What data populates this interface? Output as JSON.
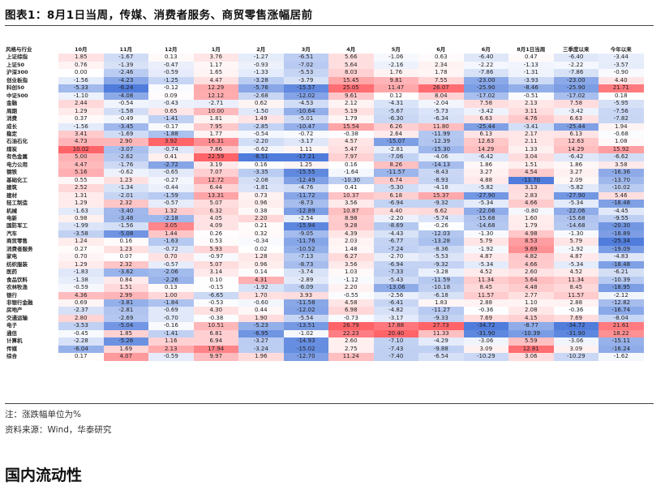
{
  "title": "图表1：8月1日当周，传媒、消费者服务、商贸零售涨幅居前",
  "table": {
    "headers": [
      "风格与行业",
      "10月",
      "11月",
      "12月",
      "1月",
      "2月",
      "3月",
      "4月",
      "5月",
      "6月",
      "6月",
      "8月1日当周",
      "三季度以来",
      "今年以来"
    ],
    "rows": [
      {
        "label": "上证综指",
        "values": [
          "1.85",
          "-1.67",
          "0.13",
          "3.76",
          "-1.27",
          "-6.51",
          "5.66",
          "-1.06",
          "0.63",
          "-6.40",
          "0.47",
          "-6.40",
          "-3.44"
        ]
      },
      {
        "label": "上证50",
        "values": [
          "0.76",
          "-1.39",
          "-0.47",
          "1.17",
          "-0.93",
          "-7.02",
          "5.64",
          "-2.16",
          "2.34",
          "-2.22",
          "-1.13",
          "-2.22",
          "-3.57"
        ]
      },
      {
        "label": "沪深300",
        "values": [
          "0.00",
          "-2.46",
          "-0.59",
          "1.65",
          "-1.33",
          "-5.53",
          "8.03",
          "1.76",
          "1.78",
          "-7.86",
          "-1.31",
          "-7.86",
          "-0.90"
        ]
      },
      {
        "label": "创业板指",
        "values": [
          "-1.56",
          "-4.23",
          "-1.25",
          "4.47",
          "-3.28",
          "-3.79",
          "15.45",
          "9.81",
          "7.55",
          "-23.00",
          "-3.93",
          "-23.00",
          "4.40"
        ]
      },
      {
        "label": "科创50",
        "values": [
          "-5.33",
          "-6.24",
          "-0.12",
          "12.29",
          "-5.76",
          "-15.57",
          "25.05",
          "11.47",
          "26.07",
          "-25.90",
          "-8.46",
          "-25.90",
          "21.71"
        ]
      },
      {
        "label": "中证500",
        "values": [
          "-1.10",
          "-4.08",
          "0.09",
          "12.12",
          "-2.68",
          "-12.02",
          "9.61",
          "0.12",
          "8.04",
          "-17.02",
          "-0.51",
          "-17.02",
          "0.18"
        ]
      },
      {
        "label": "金融",
        "values": [
          "2.44",
          "-0.54",
          "-0.43",
          "-2.71",
          "0.62",
          "-4.53",
          "2.12",
          "-4.31",
          "-2.04",
          "7.58",
          "2.13",
          "7.58",
          "-5.95"
        ]
      },
      {
        "label": "周期",
        "values": [
          "1.29",
          "-1.58",
          "0.65",
          "10.00",
          "-1.50",
          "-10.64",
          "5.19",
          "-5.67",
          "-5.73",
          "-3.42",
          "3.11",
          "-3.42",
          "-7.56"
        ]
      },
      {
        "label": "消费",
        "values": [
          "0.37",
          "-0.49",
          "-1.41",
          "1.81",
          "1.49",
          "-5.01",
          "1.79",
          "-6.30",
          "-6.34",
          "6.63",
          "4.76",
          "6.63",
          "-7.82"
        ]
      },
      {
        "label": "成长",
        "values": [
          "-1.56",
          "-3.45",
          "-0.17",
          "7.95",
          "-2.85",
          "-10.47",
          "15.54",
          "6.26",
          "11.80",
          "-25.44",
          "-3.41",
          "-25.44",
          "1.94"
        ]
      },
      {
        "label": "稳定",
        "values": [
          "3.41",
          "-1.69",
          "-1.88",
          "1.77",
          "-0.54",
          "-0.72",
          "-0.38",
          "2.64",
          "-11.99",
          "6.13",
          "2.17",
          "6.13",
          "-0.68"
        ]
      },
      {
        "label": "石油石化",
        "values": [
          "4.73",
          "2.90",
          "3.92",
          "16.31",
          "-2.20",
          "-3.17",
          "4.57",
          "-15.07",
          "-12.39",
          "12.63",
          "2.11",
          "12.63",
          "1.08"
        ]
      },
      {
        "label": "煤炭",
        "values": [
          "10.02",
          "-3.07",
          "-0.74",
          "7.86",
          "-0.62",
          "1.11",
          "5.47",
          "-2.81",
          "-15.30",
          "14.29",
          "1.33",
          "14.29",
          "15.92"
        ]
      },
      {
        "label": "有色金属",
        "values": [
          "5.00",
          "-2.62",
          "0.41",
          "22.59",
          "-8.51",
          "-17.21",
          "7.97",
          "-7.06",
          "-4.06",
          "-6.42",
          "3.04",
          "-6.42",
          "-6.62"
        ]
      },
      {
        "label": "电力公用",
        "values": [
          "4.47",
          "-1.76",
          "-2.72",
          "3.19",
          "0.16",
          "1.25",
          "0.16",
          "8.26",
          "-14.13",
          "1.86",
          "1.51",
          "1.86",
          "3.58"
        ]
      },
      {
        "label": "钢铁",
        "values": [
          "5.16",
          "-0.62",
          "-0.65",
          "7.07",
          "-3.35",
          "-15.55",
          "-1.64",
          "-11.57",
          "-8.43",
          "3.27",
          "4.54",
          "3.27",
          "-16.36"
        ]
      },
      {
        "label": "基础化工",
        "values": [
          "0.55",
          "1.23",
          "-0.27",
          "12.72",
          "-2.08",
          "-12.49",
          "-10.30",
          "6.74",
          "-8.93",
          "4.88",
          "-13.70",
          "2.09",
          "-13.70"
        ]
      },
      {
        "label": "建筑",
        "values": [
          "2.52",
          "-1.34",
          "-0.44",
          "6.44",
          "-1.81",
          "-4.76",
          "0.41",
          "-5.30",
          "-4.18",
          "-5.82",
          "3.13",
          "-5.82",
          "-10.02"
        ]
      },
      {
        "label": "建材",
        "values": [
          "1.31",
          "-2.01",
          "-1.59",
          "13.31",
          "0.73",
          "-11.72",
          "10.37",
          "6.18",
          "15.37",
          "-27.90",
          "2.83",
          "-27.90",
          "5.46"
        ]
      },
      {
        "label": "轻工制造",
        "values": [
          "1.29",
          "2.32",
          "-0.57",
          "5.07",
          "0.96",
          "-8.73",
          "3.56",
          "-6.94",
          "-9.32",
          "-5.34",
          "4.66",
          "-5.34",
          "-18.48"
        ]
      },
      {
        "label": "机械",
        "values": [
          "-1.63",
          "-3.40",
          "1.32",
          "6.32",
          "0.38",
          "-12.89",
          "10.87",
          "4.40",
          "6.62",
          "-22.06",
          "-0.80",
          "-22.06",
          "-4.45"
        ]
      },
      {
        "label": "电新",
        "values": [
          "0.98",
          "-3.48",
          "-2.18",
          "4.05",
          "2.20",
          "-2.54",
          "8.98",
          "-2.20",
          "-5.74",
          "-15.68",
          "1.60",
          "-15.68",
          "-9.55"
        ]
      },
      {
        "label": "国防军工",
        "values": [
          "-1.99",
          "-1.56",
          "3.05",
          "4.09",
          "0.21",
          "-15.94",
          "9.28",
          "-8.69",
          "-0.26",
          "-14.68",
          "1.79",
          "-14.68",
          "-20.30"
        ]
      },
      {
        "label": "汽车",
        "values": [
          "-3.58",
          "-5.08",
          "1.44",
          "0.26",
          "0.32",
          "-9.05",
          "4.39",
          "-4.43",
          "-12.03",
          "-1.30",
          "4.98",
          "-1.30",
          "-18.89"
        ]
      },
      {
        "label": "商贸零售",
        "values": [
          "1.24",
          "0.16",
          "-1.63",
          "0.53",
          "-0.34",
          "-11.76",
          "2.03",
          "-6.77",
          "-13.28",
          "5.79",
          "8.53",
          "5.79",
          "-25.34"
        ]
      },
      {
        "label": "消费者服务",
        "values": [
          "0.27",
          "1.23",
          "-0.72",
          "5.93",
          "0.02",
          "-10.52",
          "1.48",
          "-7.24",
          "-8.36",
          "-1.92",
          "9.69",
          "-1.92",
          "-19.09"
        ]
      },
      {
        "label": "家电",
        "values": [
          "0.70",
          "0.07",
          "0.70",
          "-0.97",
          "1.28",
          "-7.13",
          "6.27",
          "-2.70",
          "-5.53",
          "4.87",
          "4.82",
          "4.87",
          "-4.83"
        ]
      },
      {
        "label": "纺织服装",
        "values": [
          "1.29",
          "2.32",
          "-0.57",
          "5.07",
          "0.96",
          "-8.73",
          "3.56",
          "-6.94",
          "-9.32",
          "-5.34",
          "4.66",
          "-5.34",
          "-18.48"
        ]
      },
      {
        "label": "医药",
        "values": [
          "-1.83",
          "-3.62",
          "-2.06",
          "3.14",
          "0.14",
          "-3.74",
          "1.03",
          "-7.33",
          "-3.28",
          "4.52",
          "2.60",
          "4.52",
          "-6.21"
        ]
      },
      {
        "label": "食品饮料",
        "values": [
          "-1.38",
          "0.84",
          "-2.26",
          "0.10",
          "4.31",
          "-2.89",
          "-1.12",
          "-5.43",
          "-11.59",
          "11.34",
          "5.64",
          "11.34",
          "-10.39"
        ]
      },
      {
        "label": "农林牧渔",
        "values": [
          "-0.59",
          "1.51",
          "0.13",
          "-0.15",
          "-1.92",
          "-6.09",
          "2.20",
          "-13.06",
          "-10.18",
          "8.45",
          "4.48",
          "8.45",
          "-18.95"
        ]
      },
      {
        "label": "银行",
        "values": [
          "4.36",
          "2.99",
          "1.00",
          "-6.65",
          "1.70",
          "3.93",
          "-0.55",
          "-2.56",
          "-6.18",
          "11.57",
          "2.77",
          "11.57",
          "-2.12"
        ]
      },
      {
        "label": "非银行金融",
        "values": [
          "0.69",
          "-3.81",
          "-1.84",
          "-0.53",
          "-0.60",
          "-11.58",
          "4.58",
          "-6.41",
          "1.83",
          "2.88",
          "1.10",
          "2.88",
          "-12.82"
        ]
      },
      {
        "label": "房地产",
        "values": [
          "-2.37",
          "-2.81",
          "-0.69",
          "4.30",
          "0.44",
          "-12.02",
          "6.98",
          "-4.82",
          "-11.27",
          "-0.36",
          "2.08",
          "-0.36",
          "-16.74"
        ]
      },
      {
        "label": "交通运输",
        "values": [
          "2.80",
          "-2.69",
          "-0.70",
          "-0.38",
          "1.90",
          "-5.54",
          "-0.73",
          "-3.17",
          "-9.33",
          "7.69",
          "4.15",
          "7.69",
          "-8.04"
        ]
      },
      {
        "label": "电子",
        "values": [
          "-3.53",
          "-5.04",
          "-0.16",
          "10.51",
          "-5.23",
          "-13.51",
          "26.79",
          "17.88",
          "27.73",
          "-34.72",
          "-8.77",
          "-34.72",
          "21.61"
        ]
      },
      {
        "label": "通信",
        "values": [
          "-0.45",
          "1.85",
          "-1.41",
          "6.81",
          "-6.95",
          "-1.02",
          "22.23",
          "20.40",
          "11.33",
          "-31.90",
          "-10.39",
          "-31.90",
          "18.22"
        ]
      },
      {
        "label": "计算机",
        "values": [
          "-2.28",
          "-5.26",
          "1.16",
          "6.94",
          "-3.27",
          "-14.93",
          "2.60",
          "-7.10",
          "-4.29",
          "-3.06",
          "5.59",
          "-3.06",
          "-15.11"
        ]
      },
      {
        "label": "传媒",
        "values": [
          "-6.04",
          "1.69",
          "2.13",
          "17.94",
          "-3.24",
          "-15.02",
          "2.75",
          "-7.43",
          "-9.88",
          "3.09",
          "12.81",
          "3.09",
          "-16.24"
        ]
      },
      {
        "label": "综合",
        "values": [
          "0.17",
          "4.07",
          "-0.59",
          "9.97",
          "1.96",
          "-12.70",
          "11.24",
          "-7.40",
          "-6.54",
          "-10.29",
          "3.06",
          "-10.29",
          "-1.62"
        ]
      }
    ]
  },
  "note": "注：涨跌幅单位为%",
  "source": "资料来源：Wind，华泰研究",
  "section_title": "国内流动性",
  "colors": {
    "positive": "#e8414b",
    "negative": "#3f6fb8"
  }
}
